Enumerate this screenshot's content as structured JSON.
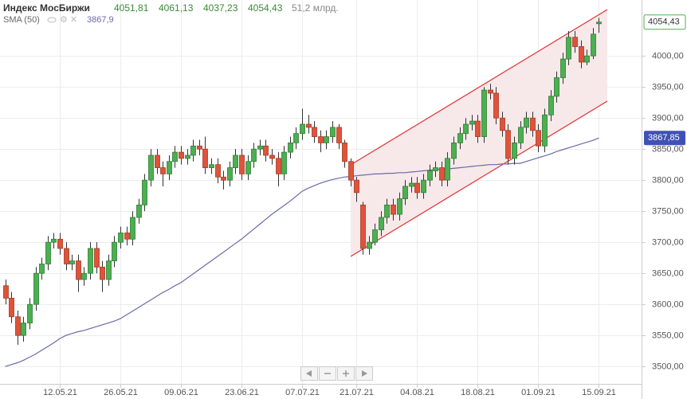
{
  "chart_data": {
    "type": "candlestick",
    "title": "Индекс МосБиржи",
    "header_value_labels": [
      "4051,81",
      "4061,13",
      "4037,23",
      "4054,43"
    ],
    "volume_label": "51,2 млрд.",
    "close_label": "4054,43",
    "up_color": "#4caf50",
    "down_color": "#e0533a",
    "categories": [
      null,
      null,
      null,
      null,
      null,
      null,
      null,
      null,
      null,
      "12.05.21",
      null,
      null,
      null,
      null,
      null,
      null,
      null,
      null,
      null,
      "26.05.21",
      null,
      null,
      null,
      null,
      null,
      null,
      null,
      null,
      null,
      "09.06.21",
      null,
      null,
      null,
      null,
      null,
      null,
      null,
      null,
      null,
      "23.06.21",
      null,
      null,
      null,
      null,
      null,
      null,
      null,
      null,
      null,
      "07.07.21",
      null,
      null,
      null,
      null,
      null,
      null,
      null,
      null,
      "21.07.21",
      null,
      null,
      null,
      null,
      null,
      null,
      null,
      null,
      null,
      "04.08.21",
      null,
      null,
      null,
      null,
      null,
      null,
      null,
      null,
      null,
      "18.08.21",
      null,
      null,
      null,
      null,
      null,
      null,
      null,
      null,
      null,
      "01.09.21",
      null,
      null,
      null,
      null,
      null,
      null,
      null,
      null,
      null,
      "15.09.21"
    ],
    "open": [
      3630,
      3610,
      3580,
      3550,
      3570,
      3600,
      3650,
      3665,
      3700,
      3705,
      3690,
      3665,
      3670,
      3640,
      3650,
      3690,
      3660,
      3640,
      3670,
      3700,
      3715,
      3705,
      3740,
      3760,
      3800,
      3840,
      3820,
      3810,
      3830,
      3845,
      3835,
      3840,
      3855,
      3850,
      3820,
      3825,
      3805,
      3800,
      3820,
      3840,
      3810,
      3830,
      3850,
      3855,
      3840,
      3835,
      3810,
      3845,
      3860,
      3875,
      3890,
      3885,
      3870,
      3860,
      3870,
      3885,
      3860,
      3830,
      3800,
      3760,
      3690,
      3700,
      3720,
      3740,
      3760,
      3745,
      3770,
      3790,
      3795,
      3780,
      3800,
      3815,
      3820,
      3800,
      3835,
      3860,
      3875,
      3890,
      3895,
      3870,
      3945,
      3940,
      3900,
      3880,
      3835,
      3860,
      3885,
      3900,
      3880,
      3855,
      3905,
      3935,
      3965,
      3995,
      4030,
      4015,
      3990,
      4000,
      4051.81
    ],
    "high": [
      3640,
      3620,
      3590,
      3580,
      3610,
      3660,
      3675,
      3710,
      3715,
      3715,
      3700,
      3680,
      3680,
      3660,
      3700,
      3700,
      3670,
      3680,
      3710,
      3725,
      3725,
      3750,
      3770,
      3810,
      3850,
      3850,
      3830,
      3840,
      3855,
      3855,
      3850,
      3865,
      3865,
      3870,
      3835,
      3835,
      3815,
      3830,
      3850,
      3850,
      3840,
      3860,
      3865,
      3865,
      3850,
      3845,
      3855,
      3870,
      3885,
      3915,
      3905,
      3895,
      3880,
      3880,
      3895,
      3890,
      3865,
      3835,
      3805,
      3765,
      3710,
      3730,
      3750,
      3770,
      3770,
      3780,
      3800,
      3805,
      3805,
      3810,
      3825,
      3830,
      3830,
      3845,
      3870,
      3885,
      3900,
      3905,
      3905,
      3950,
      3955,
      3950,
      3910,
      3890,
      3870,
      3895,
      3910,
      3910,
      3890,
      3915,
      3945,
      3975,
      4005,
      4040,
      4040,
      4025,
      4010,
      4045,
      4061.13
    ],
    "low": [
      3600,
      3570,
      3535,
      3540,
      3560,
      3590,
      3640,
      3655,
      3690,
      3680,
      3655,
      3655,
      3620,
      3630,
      3640,
      3650,
      3620,
      3630,
      3660,
      3690,
      3695,
      3695,
      3730,
      3750,
      3790,
      3810,
      3790,
      3800,
      3820,
      3825,
      3825,
      3830,
      3840,
      3810,
      3810,
      3795,
      3785,
      3790,
      3810,
      3800,
      3800,
      3820,
      3840,
      3830,
      3825,
      3790,
      3800,
      3835,
      3850,
      3865,
      3875,
      3860,
      3845,
      3850,
      3860,
      3850,
      3820,
      3790,
      3765,
      3680,
      3680,
      3695,
      3710,
      3730,
      3735,
      3735,
      3760,
      3780,
      3770,
      3770,
      3790,
      3805,
      3790,
      3790,
      3825,
      3850,
      3865,
      3880,
      3860,
      3860,
      3930,
      3890,
      3870,
      3825,
      3825,
      3850,
      3875,
      3870,
      3845,
      3845,
      3895,
      3925,
      3955,
      3985,
      4005,
      3980,
      3985,
      3995,
      4037.23
    ],
    "close": [
      3610,
      3580,
      3550,
      3570,
      3600,
      3650,
      3665,
      3700,
      3705,
      3690,
      3665,
      3670,
      3640,
      3650,
      3690,
      3660,
      3640,
      3670,
      3700,
      3715,
      3705,
      3740,
      3760,
      3800,
      3840,
      3820,
      3810,
      3830,
      3845,
      3835,
      3840,
      3855,
      3850,
      3820,
      3825,
      3805,
      3800,
      3820,
      3840,
      3810,
      3830,
      3850,
      3855,
      3840,
      3835,
      3810,
      3845,
      3860,
      3875,
      3890,
      3885,
      3870,
      3860,
      3870,
      3885,
      3860,
      3830,
      3800,
      3780,
      3690,
      3700,
      3720,
      3740,
      3760,
      3745,
      3770,
      3790,
      3795,
      3780,
      3800,
      3815,
      3820,
      3800,
      3835,
      3860,
      3875,
      3890,
      3895,
      3870,
      3945,
      3940,
      3900,
      3880,
      3835,
      3860,
      3885,
      3900,
      3880,
      3855,
      3905,
      3935,
      3965,
      3995,
      4030,
      4015,
      3990,
      4000,
      4035,
      4054.43
    ],
    "sma": {
      "name": "SMA (50)",
      "color": "#6a6aa8",
      "legend_value_label": "3867,9",
      "last_label": "3867,85",
      "values": [
        3500,
        3503,
        3506,
        3510,
        3515,
        3520,
        3526,
        3532,
        3538,
        3545,
        3550,
        3553,
        3556,
        3558,
        3561,
        3564,
        3567,
        3570,
        3573,
        3577,
        3583,
        3589,
        3595,
        3601,
        3607,
        3613,
        3619,
        3624,
        3630,
        3635,
        3642,
        3649,
        3656,
        3663,
        3670,
        3677,
        3684,
        3691,
        3698,
        3705,
        3713,
        3721,
        3729,
        3737,
        3745,
        3752,
        3759,
        3766,
        3774,
        3782,
        3787,
        3791,
        3795,
        3798,
        3801,
        3803,
        3805,
        3806,
        3807,
        3808,
        3809,
        3810,
        3810,
        3811,
        3811,
        3812,
        3812,
        3813,
        3814,
        3815,
        3816,
        3817,
        3818,
        3818,
        3819,
        3820,
        3821,
        3822,
        3823,
        3824,
        3825,
        3825,
        3826,
        3826,
        3827,
        3827,
        3830,
        3833,
        3836,
        3839,
        3842,
        3846,
        3849,
        3852,
        3855,
        3858,
        3861,
        3864,
        3867.85
      ]
    },
    "ylim": [
      3472,
      4090
    ],
    "yticks": [
      {
        "value": 3500,
        "label": "3500,00"
      },
      {
        "value": 3550,
        "label": "3550,00"
      },
      {
        "value": 3600,
        "label": "3600,00"
      },
      {
        "value": 3650,
        "label": "3650,00"
      },
      {
        "value": 3700,
        "label": "3700,00"
      },
      {
        "value": 3750,
        "label": "3750,00"
      },
      {
        "value": 3800,
        "label": "3800,00"
      },
      {
        "value": 3850,
        "label": "3850,00"
      },
      {
        "value": 3900,
        "label": "3900,00"
      },
      {
        "value": 3950,
        "label": "3950,00"
      },
      {
        "value": 4000,
        "label": "4000,00"
      }
    ],
    "grid": true
  }
}
